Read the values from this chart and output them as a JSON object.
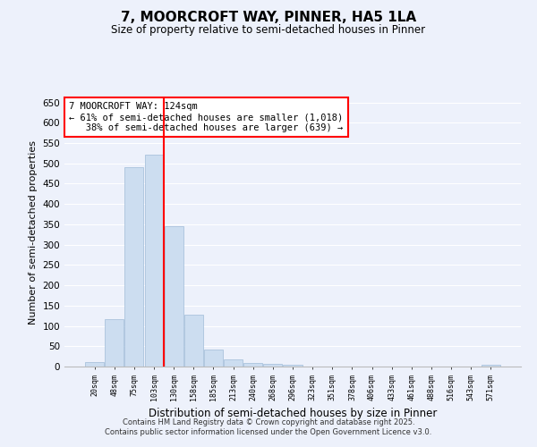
{
  "title": "7, MOORCROFT WAY, PINNER, HA5 1LA",
  "subtitle": "Size of property relative to semi-detached houses in Pinner",
  "xlabel": "Distribution of semi-detached houses by size in Pinner",
  "ylabel": "Number of semi-detached properties",
  "categories": [
    "20sqm",
    "48sqm",
    "75sqm",
    "103sqm",
    "130sqm",
    "158sqm",
    "185sqm",
    "213sqm",
    "240sqm",
    "268sqm",
    "296sqm",
    "323sqm",
    "351sqm",
    "378sqm",
    "406sqm",
    "433sqm",
    "461sqm",
    "488sqm",
    "516sqm",
    "543sqm",
    "571sqm"
  ],
  "values": [
    10,
    117,
    490,
    522,
    345,
    127,
    42,
    18,
    8,
    7,
    5,
    0,
    0,
    0,
    0,
    0,
    0,
    0,
    0,
    0,
    5
  ],
  "bar_color": "#ccddf0",
  "bar_edge_color": "#a0bcd8",
  "vline_x_index": 3,
  "vline_color": "red",
  "annotation_line1": "7 MOORCROFT WAY: 124sqm",
  "annotation_line2": "← 61% of semi-detached houses are smaller (1,018)",
  "annotation_line3": "   38% of semi-detached houses are larger (639) →",
  "annotation_box_color": "white",
  "annotation_box_edge": "red",
  "ylim": [
    0,
    660
  ],
  "yticks": [
    0,
    50,
    100,
    150,
    200,
    250,
    300,
    350,
    400,
    450,
    500,
    550,
    600,
    650
  ],
  "background_color": "#edf1fb",
  "grid_color": "white",
  "footer_line1": "Contains HM Land Registry data © Crown copyright and database right 2025.",
  "footer_line2": "Contains public sector information licensed under the Open Government Licence v3.0."
}
